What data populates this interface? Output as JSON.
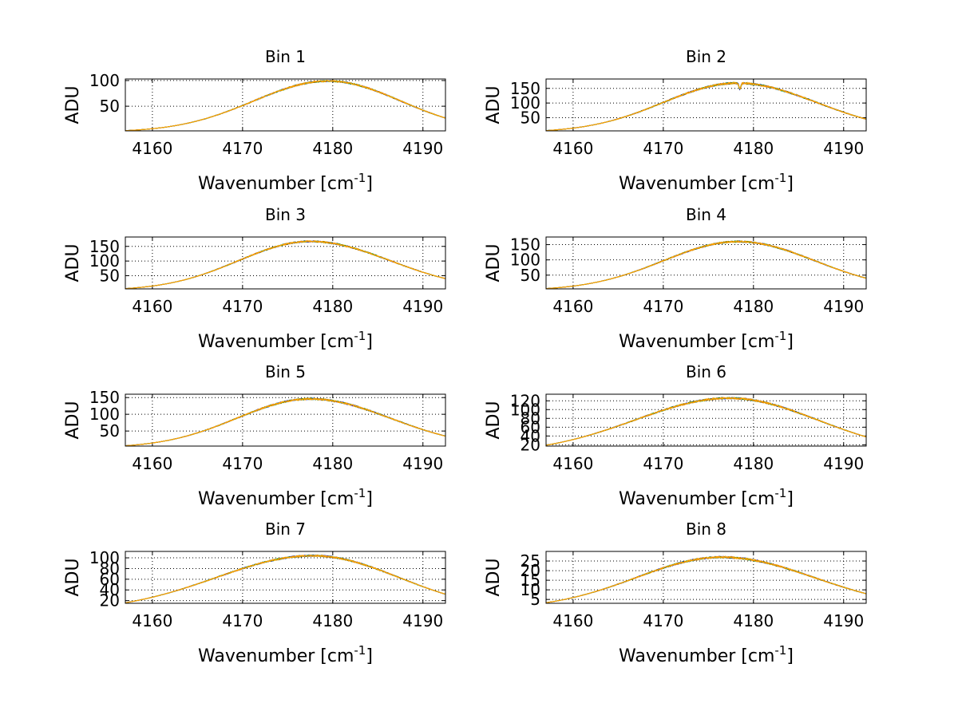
{
  "chart_data": [
    {
      "type": "line",
      "title": "Bin 1",
      "xlabel": "Wavenumber [cm",
      "xlabel_sup": "-1",
      "xlabel_end": "]",
      "ylabel": "ADU",
      "xlim": [
        4157,
        4192.5
      ],
      "ylim": [
        2,
        103
      ],
      "xticks": [
        "4160",
        "4170",
        "4180",
        "4190"
      ],
      "yticks": [
        "50",
        "100"
      ],
      "grid": true,
      "peak_x": 4179.5,
      "peak_y": 99,
      "left_y": 2.5,
      "right_y": 27,
      "noise": 1.5
    },
    {
      "type": "line",
      "title": "Bin 2",
      "xlabel": "Wavenumber [cm",
      "xlabel_sup": "-1",
      "xlabel_end": "]",
      "ylabel": "ADU",
      "xlim": [
        4157,
        4192.5
      ],
      "ylim": [
        5,
        182
      ],
      "xticks": [
        "4160",
        "4170",
        "4180",
        "4190"
      ],
      "yticks": [
        "50",
        "100",
        "150"
      ],
      "grid": true,
      "peak_x": 4178.2,
      "peak_y": 168,
      "left_y": 6,
      "right_y": 45,
      "noise": 3,
      "dip_x": 4178.5,
      "dip_depth": 20
    },
    {
      "type": "line",
      "title": "Bin 3",
      "xlabel": "Wavenumber [cm",
      "xlabel_sup": "-1",
      "xlabel_end": "]",
      "ylabel": "ADU",
      "xlim": [
        4157,
        4192.5
      ],
      "ylim": [
        5,
        182
      ],
      "xticks": [
        "4160",
        "4170",
        "4180",
        "4190"
      ],
      "yticks": [
        "50",
        "100",
        "150"
      ],
      "grid": true,
      "peak_x": 4177.5,
      "peak_y": 167,
      "left_y": 6,
      "right_y": 40,
      "noise": 2.5
    },
    {
      "type": "line",
      "title": "Bin 4",
      "xlabel": "Wavenumber [cm",
      "xlabel_sup": "-1",
      "xlabel_end": "]",
      "ylabel": "ADU",
      "xlim": [
        4157,
        4192.5
      ],
      "ylim": [
        5,
        175
      ],
      "xticks": [
        "4160",
        "4170",
        "4180",
        "4190"
      ],
      "yticks": [
        "50",
        "100",
        "150"
      ],
      "grid": true,
      "peak_x": 4178.3,
      "peak_y": 160,
      "left_y": 6,
      "right_y": 40,
      "noise": 2.5
    },
    {
      "type": "line",
      "title": "Bin 5",
      "xlabel": "Wavenumber [cm",
      "xlabel_sup": "-1",
      "xlabel_end": "]",
      "ylabel": "ADU",
      "xlim": [
        4157,
        4192.5
      ],
      "ylim": [
        5,
        160
      ],
      "xticks": [
        "4160",
        "4170",
        "4180",
        "4190"
      ],
      "yticks": [
        "50",
        "100",
        "150"
      ],
      "grid": true,
      "peak_x": 4177.5,
      "peak_y": 146,
      "left_y": 6,
      "right_y": 35,
      "noise": 2.5
    },
    {
      "type": "line",
      "title": "Bin 6",
      "xlabel": "Wavenumber [cm",
      "xlabel_sup": "-1",
      "xlabel_end": "]",
      "ylabel": "ADU",
      "xlim": [
        4157,
        4192.5
      ],
      "ylim": [
        17,
        135
      ],
      "xticks": [
        "4160",
        "4170",
        "4180",
        "4190"
      ],
      "yticks": [
        "20",
        "40",
        "60",
        "80",
        "100",
        "120"
      ],
      "grid": true,
      "peak_x": 4177.3,
      "peak_y": 126,
      "left_y": 19,
      "right_y": 38,
      "noise": 2
    },
    {
      "type": "line",
      "title": "Bin 7",
      "xlabel": "Wavenumber [cm",
      "xlabel_sup": "-1",
      "xlabel_end": "]",
      "ylabel": "ADU",
      "xlim": [
        4157,
        4192.5
      ],
      "ylim": [
        15,
        112
      ],
      "xticks": [
        "4160",
        "4170",
        "4180",
        "4190"
      ],
      "yticks": [
        "20",
        "40",
        "60",
        "80",
        "100"
      ],
      "grid": true,
      "peak_x": 4177.8,
      "peak_y": 104,
      "left_y": 16,
      "right_y": 32,
      "noise": 1.5
    },
    {
      "type": "line",
      "title": "Bin 8",
      "xlabel": "Wavenumber [cm",
      "xlabel_sup": "-1",
      "xlabel_end": "]",
      "ylabel": "ADU",
      "xlim": [
        4157,
        4192.5
      ],
      "ylim": [
        3,
        30
      ],
      "xticks": [
        "4160",
        "4170",
        "4180",
        "4190"
      ],
      "yticks": [
        "5",
        "10",
        "15",
        "20",
        "25"
      ],
      "grid": true,
      "peak_x": 4176.5,
      "peak_y": 27,
      "left_y": 3.3,
      "right_y": 8,
      "noise": 0.45
    }
  ],
  "series_colors": [
    "#000080",
    "#0000ff",
    "#008080",
    "#00a000",
    "#7f7f00",
    "#ff8c00",
    "#ffa500"
  ]
}
